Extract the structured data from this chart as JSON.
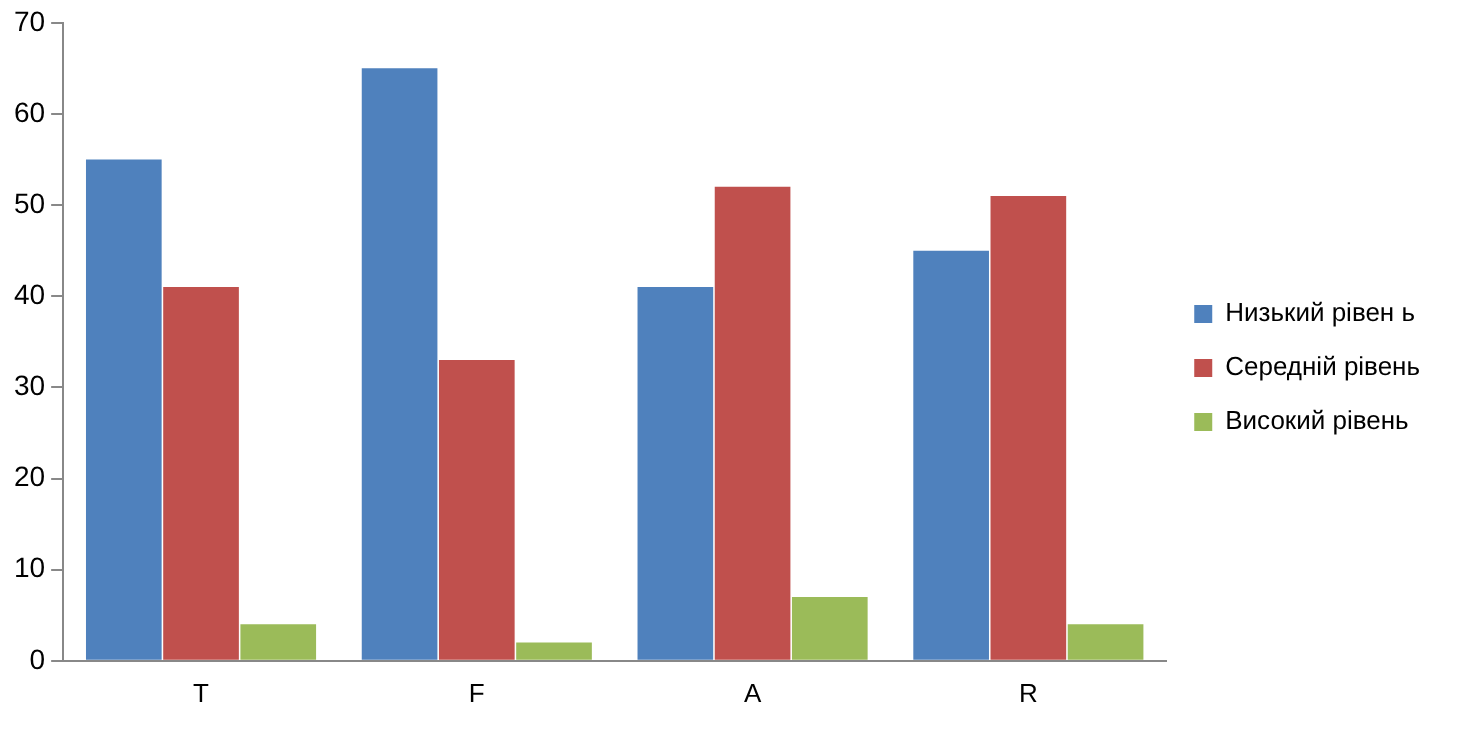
{
  "chart_data": {
    "type": "bar",
    "categories": [
      "T",
      "F",
      "A",
      "R"
    ],
    "series": [
      {
        "name": "Низький рівен ь",
        "color": "#4f81bd",
        "values": [
          55,
          65,
          41,
          45
        ]
      },
      {
        "name": "Середній рівень",
        "color": "#c0504d",
        "values": [
          41,
          33,
          52,
          51
        ]
      },
      {
        "name": "Високий рівень",
        "color": "#9bbb59",
        "values": [
          4,
          2,
          7,
          4
        ]
      }
    ],
    "ylim": [
      0,
      70
    ],
    "yticks": [
      0,
      10,
      20,
      30,
      40,
      50,
      60,
      70
    ],
    "grid": false,
    "legend": "right"
  }
}
